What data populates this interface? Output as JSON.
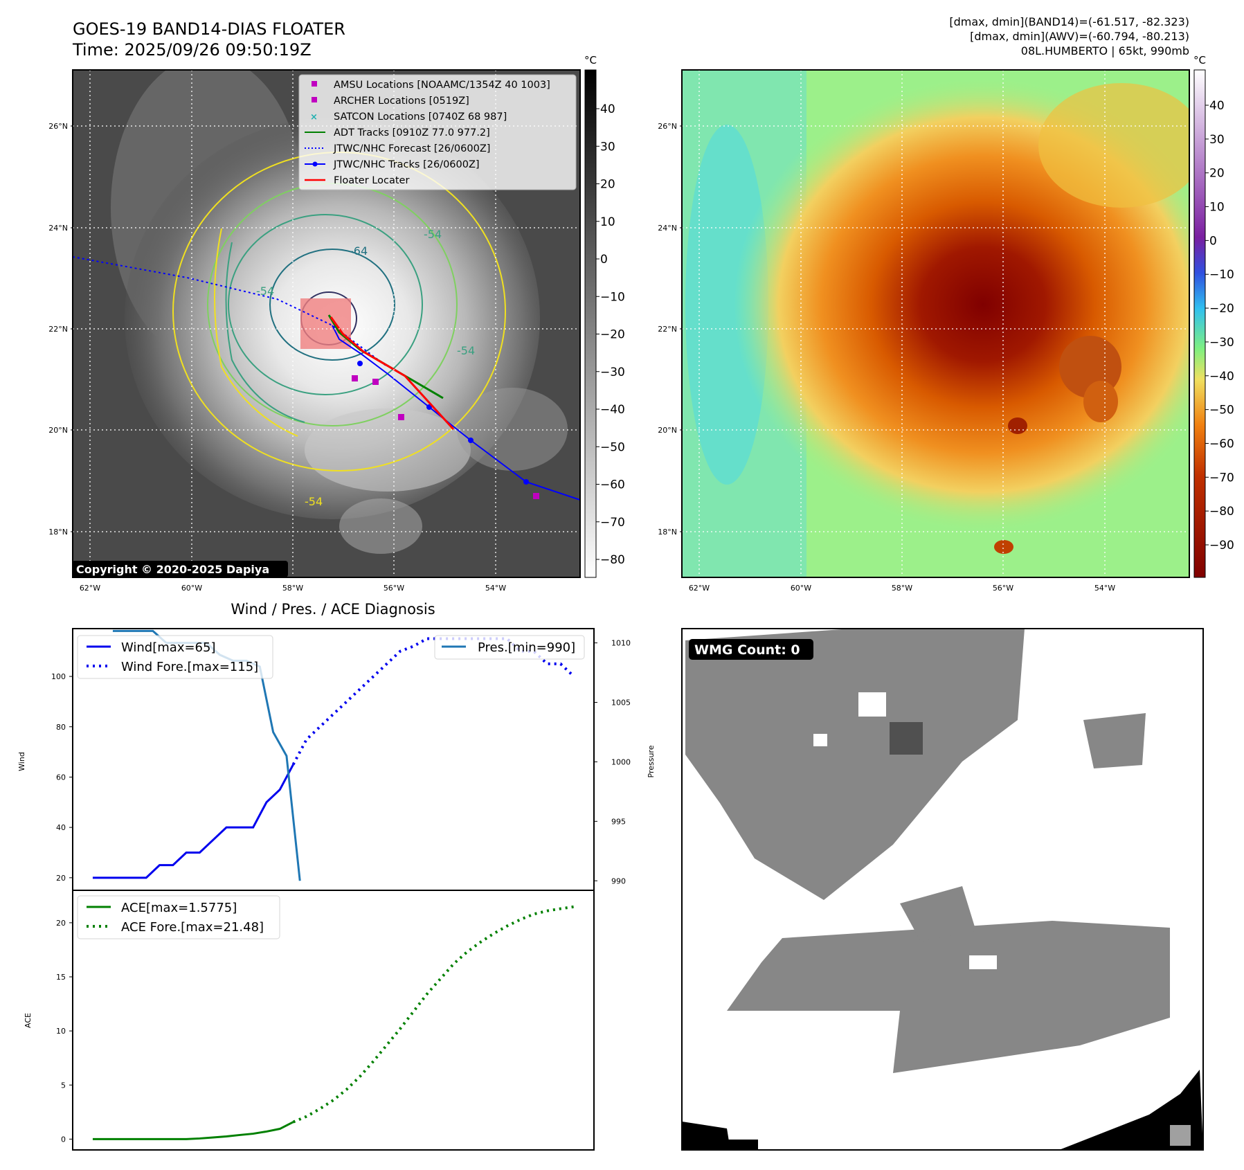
{
  "header": {
    "title_line1": "GOES-19 BAND14-DIAS FLOATER",
    "title_line2": "Time: 2025/09/26 09:50:19Z",
    "info_line1": "[dmax, dmin](BAND14)=(-61.517, -82.323)",
    "info_line2": "[dmax, dmin](AWV)=(-60.794, -80.213)",
    "info_line3": "08L.HUMBERTO | 65kt, 990mb"
  },
  "map_axes": {
    "lat_labels": [
      "26°N",
      "24°N",
      "22°N",
      "20°N",
      "18°N"
    ],
    "lon_labels": [
      "62°W",
      "60°W",
      "58°W",
      "56°W",
      "54°W"
    ],
    "colorbar_unit": "°C",
    "colorbar_left_ticks": [
      "40",
      "30",
      "20",
      "10",
      "0",
      "−10",
      "−20",
      "−30",
      "−40",
      "−50",
      "−60",
      "−70",
      "−80"
    ],
    "colorbar_right_ticks": [
      "40",
      "30",
      "20",
      "10",
      "0",
      "−10",
      "−20",
      "−30",
      "−40",
      "−50",
      "−60",
      "−70",
      "−80",
      "−90"
    ],
    "copyright": "Copyright © 2020-2025 Dapiya",
    "contour_labels": [
      "-64",
      "-54",
      "-54",
      "-54",
      "-54"
    ]
  },
  "map_legend": [
    {
      "label": "AMSU Locations [NOAAMC/1354Z 40 1003]",
      "marker": "square",
      "color": "#c000c0"
    },
    {
      "label": "ARCHER Locations [0519Z]",
      "marker": "square",
      "color": "#c000c0"
    },
    {
      "label": "SATCON Locations [0740Z 68 987]",
      "marker": "x",
      "color": "#20b0b0"
    },
    {
      "label": "ADT Tracks [0910Z 77.0 977.2]",
      "marker": "line",
      "color": "#008000"
    },
    {
      "label": "JTWC/NHC Forecast [26/0600Z]",
      "marker": "dotted",
      "color": "#0000ff"
    },
    {
      "label": "JTWC/NHC Tracks [26/0600Z]",
      "marker": "line-dot",
      "color": "#0000ff"
    },
    {
      "label": "Floater Locater",
      "marker": "line",
      "color": "#ff0000"
    }
  ],
  "wmg": {
    "badge": "WMG Count: 0"
  },
  "chart_data": [
    {
      "type": "line",
      "title": "Wind / Pres. / ACE Diagnosis",
      "ylabel": "Wind",
      "y2label": "Pressure",
      "ylim": [
        15,
        119
      ],
      "y2lim": [
        989.2,
        1011.2
      ],
      "yticks": [
        "20",
        "40",
        "60",
        "80",
        "100"
      ],
      "y2ticks": [
        "990",
        "995",
        "1000",
        "1005",
        "1010"
      ],
      "series": [
        {
          "name": "Wind[max=65]",
          "style": "solid",
          "color": "#0000ee",
          "x": [
            0,
            1,
            2,
            3,
            4,
            5,
            6,
            7,
            8,
            9,
            10,
            11,
            12,
            13,
            14,
            15
          ],
          "values": [
            20,
            20,
            20,
            20,
            20,
            25,
            25,
            30,
            30,
            35,
            40,
            40,
            40,
            50,
            55,
            65
          ]
        },
        {
          "name": "Wind Fore.[max=115]",
          "style": "dotted",
          "color": "#0000ee",
          "x": [
            15,
            16,
            17,
            18,
            19,
            20,
            21,
            22,
            23,
            24,
            25,
            26,
            27,
            28,
            29,
            30,
            31,
            32,
            33,
            34,
            35,
            36
          ],
          "values": [
            65,
            75,
            80,
            85,
            90,
            95,
            100,
            105,
            110,
            112,
            115,
            115,
            115,
            115,
            115,
            115,
            115,
            110,
            110,
            105,
            105,
            100
          ]
        },
        {
          "name": "Pres.[min=990]",
          "style": "solid",
          "color": "#1f77b4",
          "axis": "right",
          "x": [
            1.5,
            2.5,
            3.5,
            4.5,
            5.5,
            6.5,
            7.5,
            8.5,
            9.5,
            10.5,
            11.5,
            12.5,
            13.5,
            14.5,
            15.5
          ],
          "values": [
            1011,
            1011,
            1011,
            1011,
            1010,
            1010,
            1010,
            1010,
            1009,
            1008.5,
            1008.5,
            1008,
            1002.5,
            1000.5,
            990
          ]
        }
      ]
    },
    {
      "type": "line",
      "ylabel": "ACE",
      "ylim": [
        -1,
        23
      ],
      "yticks": [
        "0",
        "5",
        "10",
        "15",
        "20"
      ],
      "series": [
        {
          "name": "ACE[max=1.5775]",
          "style": "solid",
          "color": "#008000",
          "x": [
            0,
            1,
            2,
            3,
            4,
            5,
            6,
            7,
            8,
            9,
            10,
            11,
            12,
            13,
            14,
            15
          ],
          "values": [
            0,
            0,
            0,
            0,
            0,
            0,
            0,
            0,
            0.06,
            0.15,
            0.25,
            0.38,
            0.5,
            0.7,
            0.95,
            1.58
          ]
        },
        {
          "name": "ACE Fore.[max=21.48]",
          "style": "dotted",
          "color": "#008000",
          "x": [
            15,
            16,
            17,
            18,
            19,
            20,
            21,
            22,
            23,
            24,
            25,
            26,
            27,
            28,
            29,
            30,
            31,
            32,
            33,
            34,
            35,
            36
          ],
          "values": [
            1.58,
            2.1,
            2.8,
            3.6,
            4.6,
            5.8,
            7.2,
            8.7,
            10.2,
            11.8,
            13.4,
            14.8,
            16.2,
            17.3,
            18.2,
            19.0,
            19.7,
            20.3,
            20.8,
            21.1,
            21.3,
            21.48
          ]
        }
      ]
    }
  ]
}
